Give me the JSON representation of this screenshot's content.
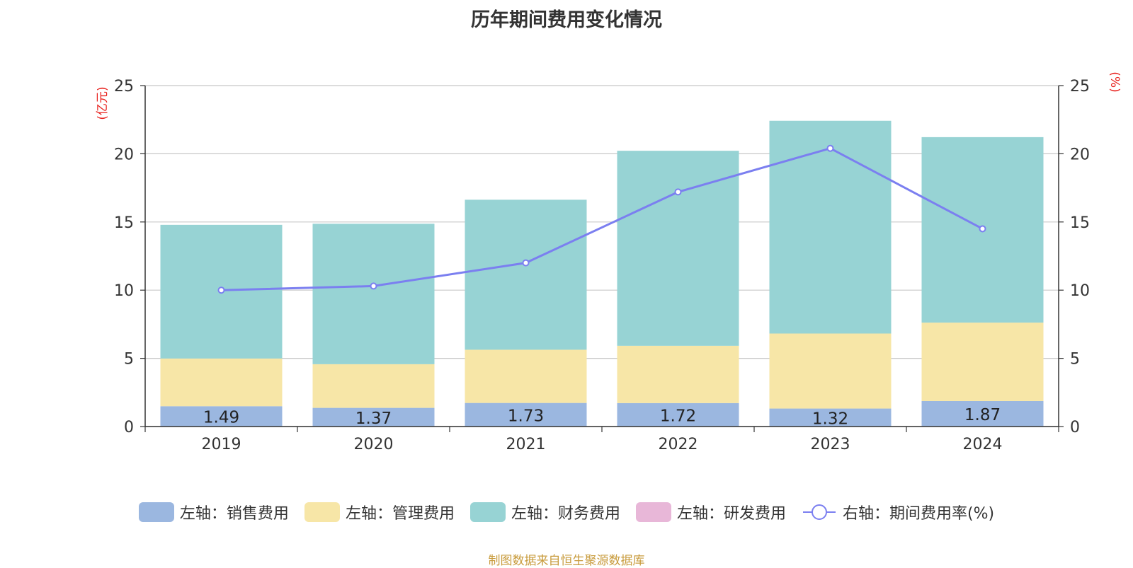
{
  "chart_data": {
    "type": "bar",
    "stacked": true,
    "title": "历年期间费用变化情况",
    "categories": [
      "2019",
      "2020",
      "2021",
      "2022",
      "2023",
      "2024"
    ],
    "ylabel_left": "(亿元)",
    "ylabel_right": "(%)",
    "ylim_left": [
      0,
      25
    ],
    "ylim_right": [
      0,
      25
    ],
    "yticks_left": [
      "0",
      "5",
      "10",
      "15",
      "20",
      "25"
    ],
    "yticks_right": [
      "0",
      "5",
      "10",
      "15",
      "20",
      "25"
    ],
    "grid": true,
    "series": [
      {
        "name": "左轴：销售费用",
        "axis": "left",
        "type": "bar",
        "color": "#9bb7e0",
        "values": [
          1.49,
          1.37,
          1.73,
          1.72,
          1.32,
          1.87
        ],
        "labels": [
          "1.49",
          "1.37",
          "1.73",
          "1.72",
          "1.32",
          "1.87"
        ]
      },
      {
        "name": "左轴：管理费用",
        "axis": "left",
        "type": "bar",
        "color": "#f7e6a7",
        "values": [
          3.5,
          3.2,
          3.9,
          4.2,
          5.5,
          5.75
        ]
      },
      {
        "name": "左轴：财务费用",
        "axis": "left",
        "type": "bar",
        "color": "#97d3d4",
        "values": [
          9.8,
          10.3,
          11.0,
          14.3,
          15.6,
          13.6
        ]
      },
      {
        "name": "左轴：研发费用",
        "axis": "left",
        "type": "bar",
        "color": "#e8b7d8",
        "values": [
          0,
          0,
          0,
          0,
          0,
          0
        ]
      },
      {
        "name": "右轴：期间费用率(%)",
        "axis": "right",
        "type": "line",
        "color": "#7b7ff0",
        "values": [
          10.0,
          10.3,
          12.0,
          17.2,
          20.4,
          14.5
        ]
      }
    ],
    "legend_position": "bottom",
    "source": "制图数据来自恒生聚源数据库"
  }
}
